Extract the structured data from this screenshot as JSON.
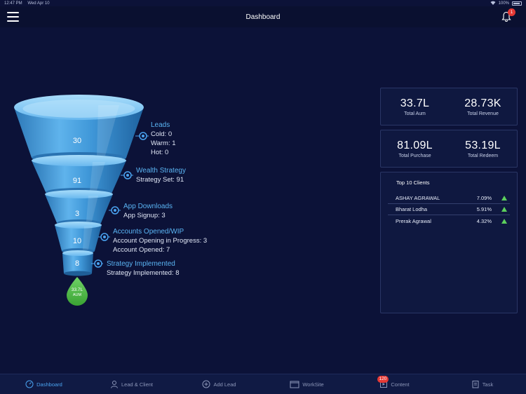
{
  "status_bar": {
    "time": "12:47 PM",
    "date": "Wed Apr 10",
    "battery": "100%"
  },
  "nav": {
    "title": "Dashboard",
    "notification_count": "1"
  },
  "funnel": {
    "stages": [
      {
        "value": "30",
        "title": "Leads",
        "details": [
          "Cold: 0",
          "Warm: 1",
          "Hot: 0"
        ]
      },
      {
        "value": "91",
        "title": "Wealth Strategy",
        "details": [
          "Strategy Set: 91"
        ]
      },
      {
        "value": "3",
        "title": "App Downloads",
        "details": [
          "App Signup: 3"
        ]
      },
      {
        "value": "10",
        "title": "Accounts Opened/WIP",
        "details": [
          "Account Opening in Progress: 3",
          "Account Opened: 7"
        ]
      },
      {
        "value": "8",
        "title": "Strategy Implemented",
        "details": [
          "Strategy Implemented: 8"
        ]
      }
    ],
    "drop": {
      "value": "33.7L",
      "label": "AUM"
    },
    "colors": {
      "top_rim": "#7fc6f5",
      "body": "#3d95d6",
      "dark": "#1c5f9a",
      "drop": "#4dbb46"
    }
  },
  "metrics": {
    "row1": [
      {
        "value": "33.7L",
        "label": "Total Aum"
      },
      {
        "value": "28.73K",
        "label": "Total Revenue"
      }
    ],
    "row2": [
      {
        "value": "81.09L",
        "label": "Total Purchase"
      },
      {
        "value": "53.19L",
        "label": "Total Redeem"
      }
    ]
  },
  "top_clients": {
    "title": "Top 10 Clients",
    "rows": [
      {
        "name": "ASHAY AGRAWAL",
        "pct": "7.09%"
      },
      {
        "name": "Bharat Lodha",
        "pct": "5.91%"
      },
      {
        "name": "Prerak Agrawal",
        "pct": "4.32%"
      }
    ]
  },
  "tabs": [
    {
      "label": "Dashboard",
      "icon": "gauge-icon"
    },
    {
      "label": "Lead & Client",
      "icon": "person-icon"
    },
    {
      "label": "Add Lead",
      "icon": "plus-circle-icon"
    },
    {
      "label": "WorkSite",
      "icon": "folder-icon"
    },
    {
      "label": "Content",
      "icon": "content-icon",
      "badge": "120"
    },
    {
      "label": "Task",
      "icon": "task-icon"
    }
  ],
  "accent_color": "#4aa3f0"
}
